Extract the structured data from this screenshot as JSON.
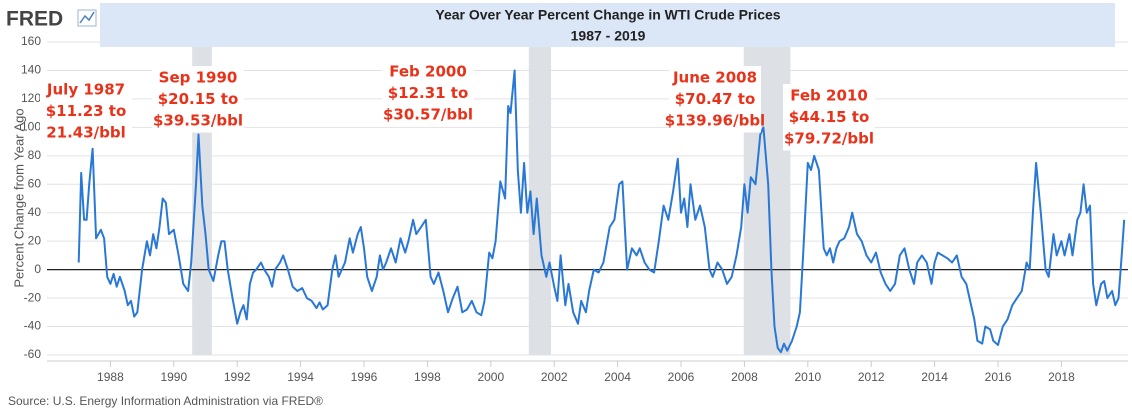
{
  "chart_data": {
    "type": "line",
    "brand": "FRED",
    "title": "Year Over Year Percent Change in WTI Crude Prices",
    "subtitle": "1987 - 2019",
    "ylabel": "Percent Change from Year Ago",
    "source": "Source: U.S. Energy Information Administration via FRED®",
    "color": "#2a78d6",
    "grid": true,
    "xlim": [
      1986,
      2020.1
    ],
    "ylim": [
      -60,
      160
    ],
    "xticks": [
      1988,
      1990,
      1992,
      1994,
      1996,
      1998,
      2000,
      2002,
      2004,
      2006,
      2008,
      2010,
      2012,
      2014,
      2016,
      2018
    ],
    "yticks": [
      -60,
      -40,
      -20,
      0,
      20,
      40,
      60,
      80,
      100,
      120,
      140,
      160
    ],
    "shaded_periods": [
      [
        1990.58,
        1991.2
      ],
      [
        2001.2,
        2001.9
      ],
      [
        2007.98,
        2009.45
      ]
    ],
    "annotations": [
      [
        "July 1987",
        "$11.23 to",
        "21.43/bbl"
      ],
      [
        "Sep 1990",
        "$20.15 to",
        "$39.53/bbl"
      ],
      [
        "Feb 2000",
        "$12.31 to",
        "$30.57/bbl"
      ],
      [
        "June 2008",
        "$70.47 to",
        "$139.96/bbl"
      ],
      [
        "Feb 2010",
        "$44.15 to",
        "$79.72/bbl"
      ]
    ],
    "x": [
      1987.0,
      1987.08,
      1987.17,
      1987.25,
      1987.33,
      1987.44,
      1987.55,
      1987.7,
      1987.8,
      1987.9,
      1988.0,
      1988.1,
      1988.2,
      1988.3,
      1988.45,
      1988.55,
      1988.65,
      1988.75,
      1988.85,
      1989.0,
      1989.15,
      1989.25,
      1989.35,
      1989.45,
      1989.55,
      1989.65,
      1989.75,
      1989.85,
      1990.0,
      1990.15,
      1990.3,
      1990.45,
      1990.55,
      1990.7,
      1990.78,
      1990.9,
      1991.0,
      1991.1,
      1991.25,
      1991.4,
      1991.5,
      1991.6,
      1991.7,
      1991.85,
      1992.0,
      1992.1,
      1992.2,
      1992.3,
      1992.4,
      1992.5,
      1992.6,
      1992.75,
      1992.85,
      1993.0,
      1993.1,
      1993.2,
      1993.35,
      1993.45,
      1993.6,
      1993.75,
      1993.9,
      1994.05,
      1994.2,
      1994.35,
      1994.5,
      1994.6,
      1994.7,
      1994.85,
      1995.0,
      1995.1,
      1995.2,
      1995.3,
      1995.4,
      1995.55,
      1995.65,
      1995.8,
      1995.9,
      1996.0,
      1996.1,
      1996.25,
      1996.4,
      1996.5,
      1996.6,
      1996.7,
      1996.85,
      1997.0,
      1997.15,
      1997.3,
      1997.4,
      1997.55,
      1997.65,
      1997.8,
      1997.95,
      1998.1,
      1998.2,
      1998.35,
      1998.5,
      1998.65,
      1998.8,
      1998.95,
      1999.1,
      1999.25,
      1999.4,
      1999.55,
      1999.7,
      1999.8,
      1999.95,
      2000.05,
      2000.15,
      2000.3,
      2000.45,
      2000.55,
      2000.62,
      2000.75,
      2000.85,
      2000.95,
      2001.05,
      2001.15,
      2001.25,
      2001.35,
      2001.45,
      2001.6,
      2001.75,
      2001.85,
      2002.0,
      2002.1,
      2002.2,
      2002.35,
      2002.45,
      2002.6,
      2002.75,
      2002.85,
      2003.0,
      2003.1,
      2003.25,
      2003.4,
      2003.55,
      2003.75,
      2003.9,
      2004.05,
      2004.15,
      2004.3,
      2004.45,
      2004.6,
      2004.7,
      2004.85,
      2005.0,
      2005.15,
      2005.3,
      2005.45,
      2005.6,
      2005.75,
      2005.9,
      2006.0,
      2006.1,
      2006.2,
      2006.3,
      2006.45,
      2006.6,
      2006.75,
      2006.9,
      2007.0,
      2007.15,
      2007.3,
      2007.45,
      2007.6,
      2007.75,
      2007.9,
      2008.0,
      2008.1,
      2008.2,
      2008.35,
      2008.5,
      2008.6,
      2008.75,
      2008.85,
      2008.95,
      2009.05,
      2009.15,
      2009.25,
      2009.35,
      2009.5,
      2009.65,
      2009.75,
      2009.85,
      2010.0,
      2010.1,
      2010.2,
      2010.35,
      2010.5,
      2010.6,
      2010.7,
      2010.8,
      2010.9,
      2011.0,
      2011.15,
      2011.3,
      2011.4,
      2011.55,
      2011.7,
      2011.85,
      2012.0,
      2012.15,
      2012.3,
      2012.45,
      2012.6,
      2012.75,
      2012.9,
      2013.05,
      2013.2,
      2013.35,
      2013.45,
      2013.6,
      2013.75,
      2013.9,
      2014.0,
      2014.1,
      2014.25,
      2014.4,
      2014.55,
      2014.7,
      2014.85,
      2015.0,
      2015.1,
      2015.25,
      2015.35,
      2015.5,
      2015.6,
      2015.75,
      2015.85,
      2016.0,
      2016.15,
      2016.3,
      2016.45,
      2016.6,
      2016.75,
      2016.9,
      2017.0,
      2017.1,
      2017.2,
      2017.35,
      2017.5,
      2017.6,
      2017.75,
      2017.85,
      2018.0,
      2018.1,
      2018.25,
      2018.35,
      2018.5,
      2018.6,
      2018.7,
      2018.8,
      2018.9,
      2019.0,
      2019.1,
      2019.25,
      2019.35,
      2019.45,
      2019.6,
      2019.7,
      2019.8,
      2019.9,
      2019.98
    ],
    "values": [
      5,
      68,
      35,
      35,
      60,
      85,
      22,
      28,
      22,
      -5,
      -10,
      -3,
      -12,
      -5,
      -15,
      -25,
      -22,
      -33,
      -30,
      0,
      20,
      10,
      25,
      15,
      30,
      50,
      47,
      25,
      28,
      10,
      -10,
      -15,
      5,
      60,
      95,
      45,
      25,
      0,
      -8,
      10,
      20,
      20,
      0,
      -20,
      -38,
      -30,
      -25,
      -35,
      -10,
      -2,
      0,
      5,
      0,
      -5,
      -12,
      0,
      5,
      10,
      0,
      -12,
      -15,
      -13,
      -20,
      -22,
      -27,
      -23,
      -28,
      -25,
      0,
      10,
      -5,
      0,
      5,
      22,
      12,
      25,
      30,
      15,
      -5,
      -15,
      -5,
      10,
      0,
      5,
      15,
      5,
      22,
      12,
      20,
      35,
      25,
      30,
      35,
      -5,
      -10,
      -2,
      -15,
      -30,
      -20,
      -12,
      -30,
      -28,
      -22,
      -30,
      -32,
      -22,
      12,
      8,
      20,
      62,
      50,
      115,
      110,
      140,
      70,
      40,
      75,
      40,
      55,
      25,
      50,
      10,
      -5,
      5,
      -12,
      -22,
      10,
      -25,
      -10,
      -30,
      -38,
      -22,
      -30,
      -15,
      0,
      -2,
      5,
      30,
      35,
      60,
      62,
      0,
      15,
      10,
      15,
      5,
      0,
      -2,
      20,
      45,
      35,
      55,
      78,
      40,
      50,
      30,
      60,
      35,
      45,
      30,
      0,
      -5,
      5,
      0,
      -10,
      -5,
      10,
      30,
      60,
      40,
      65,
      60,
      95,
      100,
      60,
      0,
      -40,
      -55,
      -58,
      -52,
      -57,
      -50,
      -40,
      -30,
      10,
      75,
      70,
      80,
      70,
      15,
      10,
      15,
      5,
      15,
      20,
      22,
      30,
      40,
      25,
      20,
      10,
      5,
      12,
      -2,
      -10,
      -15,
      -10,
      10,
      15,
      0,
      -10,
      5,
      10,
      5,
      -10,
      5,
      12,
      10,
      8,
      5,
      10,
      -5,
      -10,
      -20,
      -35,
      -50,
      -52,
      -40,
      -42,
      -50,
      -53,
      -40,
      -35,
      -25,
      -20,
      -15,
      5,
      0,
      40,
      75,
      40,
      0,
      -5,
      25,
      10,
      20,
      10,
      25,
      10,
      35,
      40,
      60,
      40,
      45,
      -10,
      -25,
      -10,
      -8,
      -20,
      -15,
      -25,
      -20,
      10,
      35
    ]
  }
}
